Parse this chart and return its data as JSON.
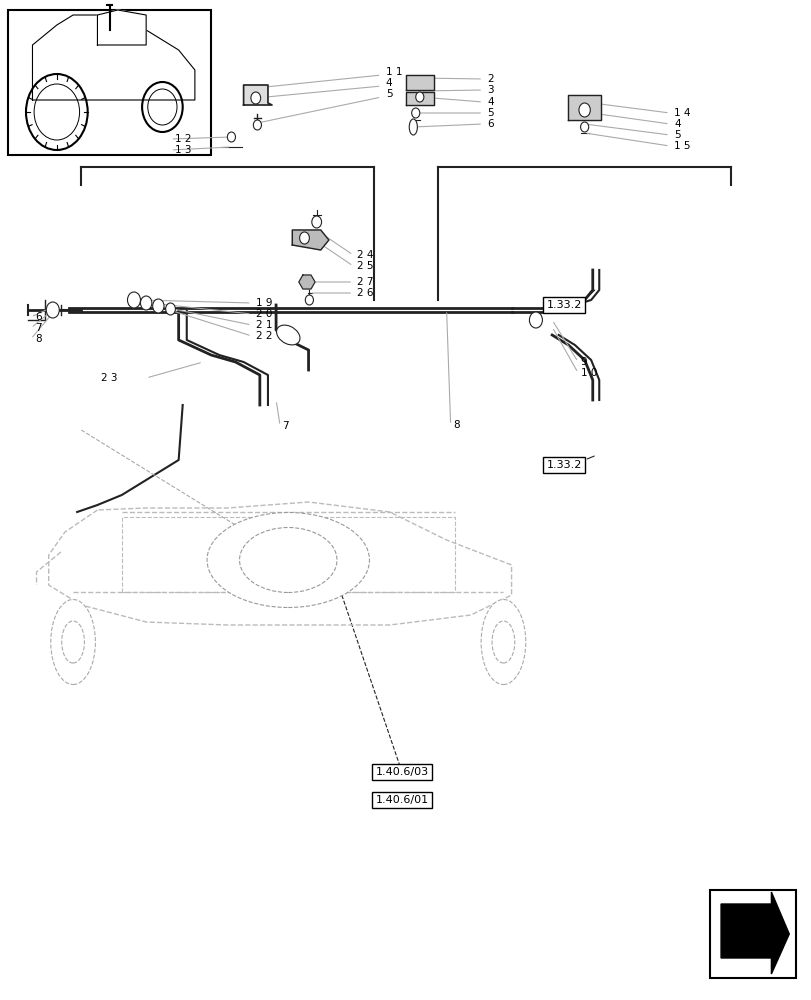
{
  "bg_color": "#ffffff",
  "line_color": "#555555",
  "dark_line": "#222222",
  "light_line": "#aaaaaa",
  "box_color": "#000000",
  "title": "",
  "figsize": [
    8.12,
    10.0
  ],
  "dpi": 100
}
